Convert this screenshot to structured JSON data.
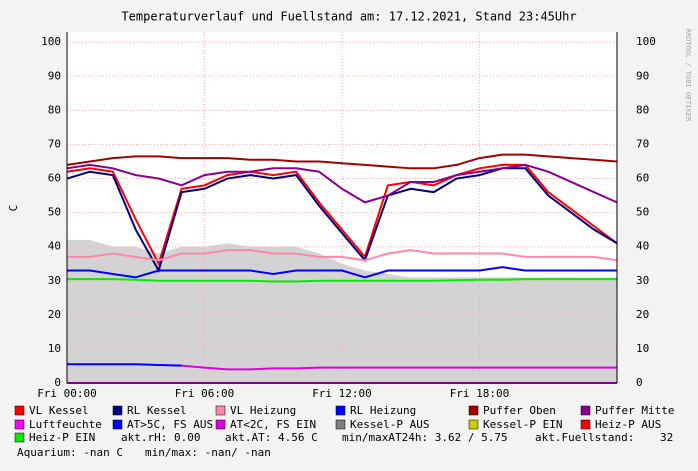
{
  "chart_data": {
    "type": "line",
    "title": "Temperaturverlauf und Fuellstand am: 17.12.2021, Stand 23:45Uhr",
    "y_label": "C",
    "watermark": "RRDTOOL / TOBI OETIKER",
    "x": [
      0,
      1,
      2,
      3,
      4,
      5,
      6,
      7,
      8,
      9,
      10,
      11,
      12,
      13,
      14,
      15,
      16,
      17,
      18,
      19,
      20,
      21,
      22,
      23,
      24
    ],
    "xlim": [
      0,
      24
    ],
    "xticks": [
      {
        "value": 0,
        "label": "Fri 00:00"
      },
      {
        "value": 6,
        "label": "Fri 06:00"
      },
      {
        "value": 12,
        "label": "Fri 12:00"
      },
      {
        "value": 18,
        "label": "Fri 18:00"
      }
    ],
    "ylim": [
      0,
      103
    ],
    "yticks": [
      0,
      10,
      20,
      30,
      40,
      50,
      60,
      70,
      80,
      90,
      100
    ],
    "grid": true,
    "series": [
      {
        "name": "VL Kessel",
        "color": "#ff0000",
        "values": [
          62,
          63,
          62,
          48,
          35,
          57,
          58,
          61,
          62,
          61,
          62,
          53,
          45,
          37,
          58,
          59,
          58,
          61,
          63,
          64,
          64,
          56,
          51,
          46,
          41
        ]
      },
      {
        "name": "RL Kessel",
        "color": "#000080",
        "values": [
          60,
          62,
          61,
          45,
          33,
          56,
          57,
          60,
          61,
          60,
          61,
          52,
          44,
          36,
          55,
          57,
          56,
          60,
          61,
          63,
          63,
          55,
          50,
          45,
          41
        ]
      },
      {
        "name": "VL Heizung",
        "color": "#ff88aa",
        "values": [
          37,
          37,
          38,
          37,
          36,
          38,
          38,
          39,
          39,
          38,
          38,
          37,
          37,
          36,
          38,
          39,
          38,
          38,
          38,
          38,
          37,
          37,
          37,
          37,
          36
        ]
      },
      {
        "name": "RL Heizung",
        "color": "#0000ff",
        "values": [
          33,
          33,
          32,
          31,
          33,
          33,
          33,
          33,
          33,
          32,
          33,
          33,
          33,
          31,
          33,
          33,
          33,
          33,
          33,
          34,
          33,
          33,
          33,
          33,
          33
        ]
      },
      {
        "name": "Puffer Oben",
        "color": "#a00000",
        "values": [
          64,
          65,
          66,
          66.5,
          66.5,
          66,
          66,
          66,
          65.5,
          65.5,
          65,
          65,
          64.5,
          64,
          63.5,
          63,
          63,
          64,
          66,
          67,
          67,
          66.5,
          66,
          65.5,
          65
        ]
      },
      {
        "name": "Puffer Mitte",
        "color": "#8b008b",
        "values": [
          63,
          64,
          63,
          61,
          60,
          58,
          61,
          62,
          62,
          63,
          63,
          62,
          57,
          53,
          55,
          59,
          59,
          61,
          62,
          63,
          64,
          62,
          59,
          56,
          53
        ]
      },
      {
        "name": "Luftfeuchte",
        "color": "#ff00ff",
        "values": [
          0,
          0,
          0,
          0,
          0,
          0,
          0,
          0,
          0,
          0,
          0,
          0,
          0,
          0,
          0,
          0,
          0,
          0,
          0,
          0,
          0,
          0,
          0,
          0,
          0
        ]
      },
      {
        "name": "AT>5C, FS AUS",
        "color": "#0000ff",
        "values": [
          5.5,
          5.5,
          5.5,
          5.5,
          5.3,
          5.1,
          null,
          null,
          null,
          null,
          null,
          null,
          null,
          null,
          null,
          null,
          null,
          null,
          null,
          null,
          null,
          null,
          null,
          null,
          null
        ]
      },
      {
        "name": "AT<2C, FS EIN",
        "color": "#dd00dd",
        "values": [
          null,
          null,
          null,
          null,
          null,
          5.1,
          4.5,
          4,
          4,
          4.3,
          4.3,
          4.5,
          4.5,
          4.5,
          4.5,
          4.5,
          4.5,
          4.5,
          4.5,
          4.5,
          4.5,
          4.5,
          4.5,
          4.5,
          4.5
        ]
      },
      {
        "name": "Kessel-P AUS",
        "color": "#808080",
        "style": "area",
        "values": [
          42,
          42,
          40,
          40,
          38,
          40,
          40,
          41,
          40,
          40,
          40,
          38,
          35,
          33,
          32,
          31,
          31,
          31,
          31,
          31,
          31,
          31,
          31,
          31,
          31
        ]
      },
      {
        "name": "Kessel-P EIN",
        "color": "#cccc00",
        "values": [
          null,
          null,
          null,
          null,
          null,
          null,
          null,
          null,
          null,
          null,
          null,
          null,
          null,
          null,
          null,
          null,
          null,
          null,
          null,
          null,
          null,
          null,
          null,
          null,
          null
        ]
      },
      {
        "name": "Heiz-P AUS",
        "color": "#ff0000",
        "values": [
          null,
          null,
          null,
          null,
          null,
          null,
          null,
          null,
          null,
          null,
          null,
          null,
          null,
          null,
          null,
          null,
          null,
          null,
          null,
          null,
          null,
          null,
          null,
          null,
          null
        ]
      },
      {
        "name": "Heiz-P EIN",
        "color": "#00ee00",
        "values": [
          30.5,
          30.5,
          30.5,
          30.3,
          30,
          30,
          30,
          30,
          30,
          29.8,
          29.8,
          30,
          30,
          30,
          30,
          30,
          30,
          30.2,
          30.3,
          30.3,
          30.5,
          30.5,
          30.5,
          30.5,
          30.5
        ]
      }
    ],
    "legend_notes": [
      "akt.rH: 0.00",
      "akt.AT: 4.56 C",
      "min/maxAT24h: 3.62 / 5.75",
      "akt.Fuellstand:",
      "32",
      "Aquarium: -nan C",
      "min/max: -nan/ -nan"
    ]
  }
}
